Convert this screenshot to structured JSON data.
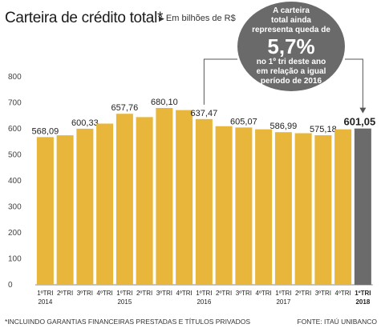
{
  "title": "Carteira de crédito total*",
  "subtitle": "Em bilhões de R$",
  "callout": {
    "lines_top": [
      "A carteira",
      "total ainda",
      "representa queda de"
    ],
    "highlight": "5,7%",
    "lines_bottom": [
      "no 1º tri deste ano",
      "em relação a igual",
      "período de 2016"
    ]
  },
  "footnote": "*INCLUINDO GARANTIAS FINANCEIRAS PRESTADAS E TÍTULOS PRIVADOS",
  "source": "FONTE: ITAÚ UNIBANCO",
  "colors": {
    "bar": "#e8b63a",
    "highlight_bar": "#6b6b6b",
    "callout": "#6a6a6a",
    "line": "#555555"
  },
  "chart_data": {
    "type": "bar",
    "title": "Carteira de crédito total*",
    "ylabel": "",
    "ylim": [
      0,
      800
    ],
    "yticks": [
      0,
      100,
      200,
      300,
      400,
      500,
      600,
      700,
      800
    ],
    "grid": false,
    "categories": [
      "1ºTRI",
      "2ºTRI",
      "3ºTRI",
      "4ºTRI",
      "1ºTRI",
      "2ºTRI",
      "3ºTRI",
      "4ºTRI",
      "1ºTRI",
      "2ºTRI",
      "3ºTRI",
      "4ºTRI",
      "1ºTRI",
      "2ºTRI",
      "3ºTRI",
      "4ºTRI",
      "1ºTRI"
    ],
    "years": [
      {
        "label": "2014",
        "index": 0
      },
      {
        "label": "2015",
        "index": 4
      },
      {
        "label": "2016",
        "index": 8
      },
      {
        "label": "2017",
        "index": 12
      },
      {
        "label": "2018",
        "index": 16
      }
    ],
    "values": [
      568.09,
      575,
      600.33,
      620,
      657.76,
      645,
      680.1,
      672,
      637.47,
      610,
      605.07,
      598,
      586.99,
      583,
      575.18,
      598,
      601.05
    ],
    "data_labels": [
      "568,09",
      "",
      "600,33",
      "",
      "657,76",
      "",
      "680,10",
      "",
      "637,47",
      "",
      "605,07",
      "",
      "586,99",
      "",
      "575,18",
      "",
      "601,05"
    ],
    "highlight_index": 16
  }
}
